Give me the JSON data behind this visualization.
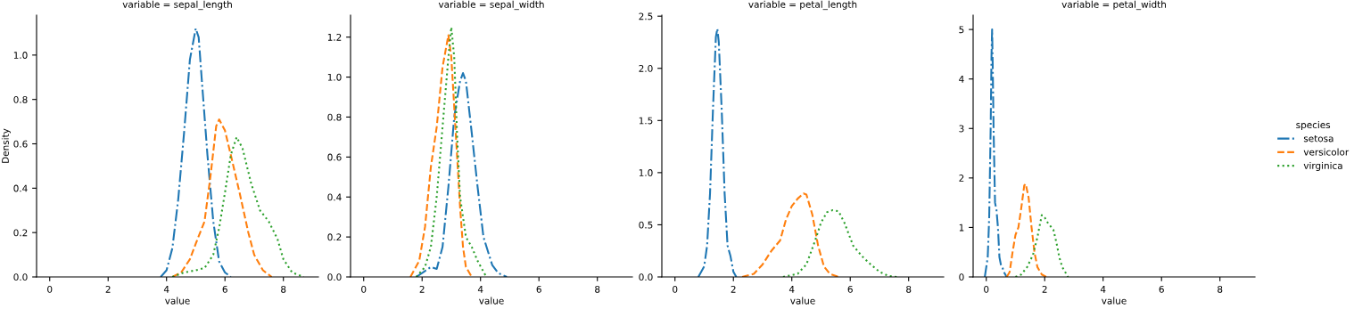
{
  "chart_data": [
    {
      "type": "line",
      "title": "variable = sepal_length",
      "xlabel": "value",
      "ylabel": "Density",
      "xlim": [
        -0.45,
        9.2
      ],
      "xticks": [
        0,
        2,
        4,
        6,
        8
      ],
      "ylim": [
        0,
        1.18
      ],
      "yticks": [
        {
          "value": 0,
          "label": "0.0"
        },
        {
          "value": 0.2,
          "label": "0.2"
        },
        {
          "value": 0.4,
          "label": "0.4"
        },
        {
          "value": 0.6,
          "label": "0.6"
        },
        {
          "value": 0.8,
          "label": "0.8"
        },
        {
          "value": 1.0,
          "label": "1.0"
        }
      ],
      "grid": false,
      "legend": false,
      "series": [
        {
          "color": "#1f77b4",
          "line_style": "dashdot",
          "x": [
            3.8,
            4.0,
            4.2,
            4.4,
            4.6,
            4.8,
            5.0,
            5.1,
            5.2,
            5.4,
            5.6,
            5.8,
            6.0,
            6.2
          ],
          "values": [
            0,
            0.03,
            0.13,
            0.35,
            0.65,
            0.98,
            1.12,
            1.08,
            0.9,
            0.55,
            0.25,
            0.07,
            0.02,
            0
          ]
        },
        {
          "color": "#ff7f0e",
          "line_style": "dashed",
          "x": [
            4.2,
            4.5,
            4.8,
            5.0,
            5.3,
            5.5,
            5.7,
            5.8,
            6.0,
            6.2,
            6.5,
            6.8,
            7.0,
            7.3,
            7.6
          ],
          "values": [
            0,
            0.02,
            0.08,
            0.15,
            0.25,
            0.45,
            0.68,
            0.71,
            0.66,
            0.55,
            0.38,
            0.2,
            0.1,
            0.03,
            0
          ]
        },
        {
          "color": "#2ca02c",
          "line_style": "dotted",
          "x": [
            4.2,
            4.6,
            5.0,
            5.3,
            5.6,
            5.8,
            6.0,
            6.2,
            6.4,
            6.6,
            6.9,
            7.2,
            7.5,
            7.8,
            8.0,
            8.3,
            8.7
          ],
          "values": [
            0,
            0.02,
            0.03,
            0.04,
            0.1,
            0.22,
            0.38,
            0.55,
            0.63,
            0.58,
            0.42,
            0.3,
            0.25,
            0.17,
            0.08,
            0.02,
            0
          ]
        }
      ]
    },
    {
      "type": "line",
      "title": "variable = sepal_width",
      "xlabel": "value",
      "xlim": [
        -0.45,
        9.2
      ],
      "xticks": [
        0,
        2,
        4,
        6,
        8
      ],
      "ylim": [
        0,
        1.31
      ],
      "yticks": [
        {
          "value": 0,
          "label": "0.0"
        },
        {
          "value": 0.2,
          "label": "0.2"
        },
        {
          "value": 0.4,
          "label": "0.4"
        },
        {
          "value": 0.6,
          "label": "0.6"
        },
        {
          "value": 0.8,
          "label": "0.8"
        },
        {
          "value": 1.0,
          "label": "1.0"
        },
        {
          "value": 1.2,
          "label": "1.2"
        }
      ],
      "grid": false,
      "legend": false,
      "series": [
        {
          "color": "#1f77b4",
          "line_style": "dashdot",
          "x": [
            1.8,
            2.1,
            2.3,
            2.5,
            2.7,
            2.9,
            3.1,
            3.3,
            3.4,
            3.5,
            3.7,
            3.9,
            4.1,
            4.4,
            4.6,
            4.9
          ],
          "values": [
            0,
            0.03,
            0.05,
            0.04,
            0.15,
            0.45,
            0.8,
            0.98,
            1.02,
            0.98,
            0.72,
            0.45,
            0.2,
            0.06,
            0.02,
            0
          ]
        },
        {
          "color": "#ff7f0e",
          "line_style": "dashed",
          "x": [
            1.6,
            1.9,
            2.1,
            2.3,
            2.5,
            2.7,
            2.9,
            3.0,
            3.1,
            3.3,
            3.4,
            3.5,
            3.7
          ],
          "values": [
            0,
            0.08,
            0.25,
            0.55,
            0.75,
            1.05,
            1.21,
            1.1,
            0.85,
            0.35,
            0.15,
            0.05,
            0
          ]
        },
        {
          "color": "#2ca02c",
          "line_style": "dotted",
          "x": [
            1.8,
            2.1,
            2.3,
            2.5,
            2.7,
            2.9,
            3.0,
            3.1,
            3.2,
            3.3,
            3.5,
            3.7,
            3.9,
            4.2
          ],
          "values": [
            0,
            0.05,
            0.15,
            0.4,
            0.75,
            1.1,
            1.25,
            1.1,
            0.7,
            0.4,
            0.2,
            0.15,
            0.08,
            0
          ]
        }
      ]
    },
    {
      "type": "line",
      "title": "variable = petal_length",
      "xlabel": "value",
      "xlim": [
        -0.45,
        9.2
      ],
      "xticks": [
        0,
        2,
        4,
        6,
        8
      ],
      "ylim": [
        0,
        2.51
      ],
      "yticks": [
        {
          "value": 0,
          "label": "0.0"
        },
        {
          "value": 0.5,
          "label": "0.5"
        },
        {
          "value": 1.0,
          "label": "1.0"
        },
        {
          "value": 1.5,
          "label": "1.5"
        },
        {
          "value": 2.0,
          "label": "2.0"
        },
        {
          "value": 2.5,
          "label": "2.5"
        }
      ],
      "grid": false,
      "legend": false,
      "series": [
        {
          "color": "#1f77b4",
          "line_style": "dashdot",
          "x": [
            0.8,
            1.0,
            1.1,
            1.2,
            1.3,
            1.4,
            1.45,
            1.5,
            1.6,
            1.7,
            1.8,
            1.9,
            2.0,
            2.1
          ],
          "values": [
            0,
            0.1,
            0.3,
            0.8,
            1.6,
            2.3,
            2.38,
            2.25,
            1.6,
            0.8,
            0.3,
            0.2,
            0.05,
            0
          ]
        },
        {
          "color": "#ff7f0e",
          "line_style": "dashed",
          "x": [
            2.3,
            2.7,
            3.0,
            3.3,
            3.6,
            3.8,
            4.0,
            4.2,
            4.4,
            4.5,
            4.7,
            4.9,
            5.1,
            5.3,
            5.6
          ],
          "values": [
            0,
            0.03,
            0.12,
            0.25,
            0.35,
            0.55,
            0.68,
            0.75,
            0.8,
            0.79,
            0.6,
            0.3,
            0.1,
            0.03,
            0
          ]
        },
        {
          "color": "#2ca02c",
          "line_style": "dotted",
          "x": [
            3.7,
            4.2,
            4.5,
            4.8,
            5.0,
            5.2,
            5.4,
            5.6,
            5.8,
            6.1,
            6.4,
            6.7,
            7.0,
            7.3,
            7.6
          ],
          "values": [
            0,
            0.03,
            0.12,
            0.35,
            0.52,
            0.62,
            0.64,
            0.63,
            0.52,
            0.3,
            0.2,
            0.12,
            0.05,
            0.01,
            0
          ]
        }
      ]
    },
    {
      "type": "line",
      "title": "variable = petal_width",
      "xlabel": "value",
      "legend_title": "species",
      "xlim": [
        -0.45,
        9.2
      ],
      "xticks": [
        0,
        2,
        4,
        6,
        8
      ],
      "ylim": [
        0,
        5.29
      ],
      "yticks": [
        0,
        1,
        2,
        3,
        4,
        5
      ],
      "grid": false,
      "legend": "right",
      "series": [
        {
          "name": "setosa",
          "color": "#1f77b4",
          "line_style": "dashdot",
          "x": [
            -0.05,
            0.05,
            0.1,
            0.15,
            0.18,
            0.2,
            0.22,
            0.25,
            0.3,
            0.35,
            0.4,
            0.45,
            0.5,
            0.55,
            0.6,
            0.7
          ],
          "values": [
            0,
            0.4,
            1.2,
            3.0,
            4.5,
            5.0,
            4.3,
            3.0,
            1.5,
            1.35,
            1.0,
            0.4,
            0.25,
            0.2,
            0.1,
            0
          ]
        },
        {
          "name": "versicolor",
          "color": "#ff7f0e",
          "line_style": "dashed",
          "x": [
            0.7,
            0.8,
            0.9,
            1.0,
            1.1,
            1.2,
            1.3,
            1.35,
            1.45,
            1.55,
            1.65,
            1.75,
            1.9,
            2.05
          ],
          "values": [
            0,
            0.1,
            0.5,
            0.85,
            1.0,
            1.4,
            1.85,
            1.88,
            1.6,
            1.0,
            0.5,
            0.2,
            0.05,
            0
          ]
        },
        {
          "name": "virginica",
          "color": "#2ca02c",
          "line_style": "dotted",
          "x": [
            1.0,
            1.2,
            1.4,
            1.6,
            1.75,
            1.9,
            2.0,
            2.1,
            2.3,
            2.4,
            2.5,
            2.6,
            2.8
          ],
          "values": [
            0,
            0.05,
            0.2,
            0.45,
            0.8,
            1.25,
            1.2,
            1.1,
            0.95,
            0.7,
            0.4,
            0.2,
            0
          ]
        }
      ]
    }
  ]
}
